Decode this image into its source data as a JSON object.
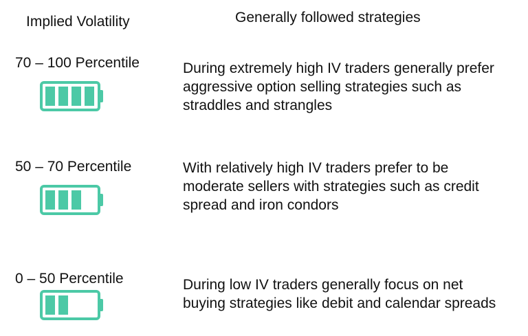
{
  "header": {
    "left": "Implied Volatility",
    "right": "Generally followed strategies"
  },
  "colors": {
    "battery": "#4cc9a6",
    "text": "#111111"
  },
  "rows": [
    {
      "percentile": "70 – 100 Percentile",
      "icon": "battery-full-icon",
      "level": 4,
      "lines": [
        "During extremely high IV traders generally prefer",
        "aggressive option selling strategies such as",
        "straddles and strangles"
      ]
    },
    {
      "percentile": "50 – 70 Percentile",
      "icon": "battery-three-quarter-icon",
      "level": 3,
      "lines": [
        "With relatively high IV traders prefer to be",
        "moderate sellers with strategies such as credit",
        "spread and iron condors"
      ]
    },
    {
      "percentile": "0 – 50 Percentile",
      "icon": "battery-half-icon",
      "level": 2,
      "lines": [
        "During low IV traders generally focus on net",
        "buying strategies like debit and calendar spreads"
      ]
    }
  ]
}
